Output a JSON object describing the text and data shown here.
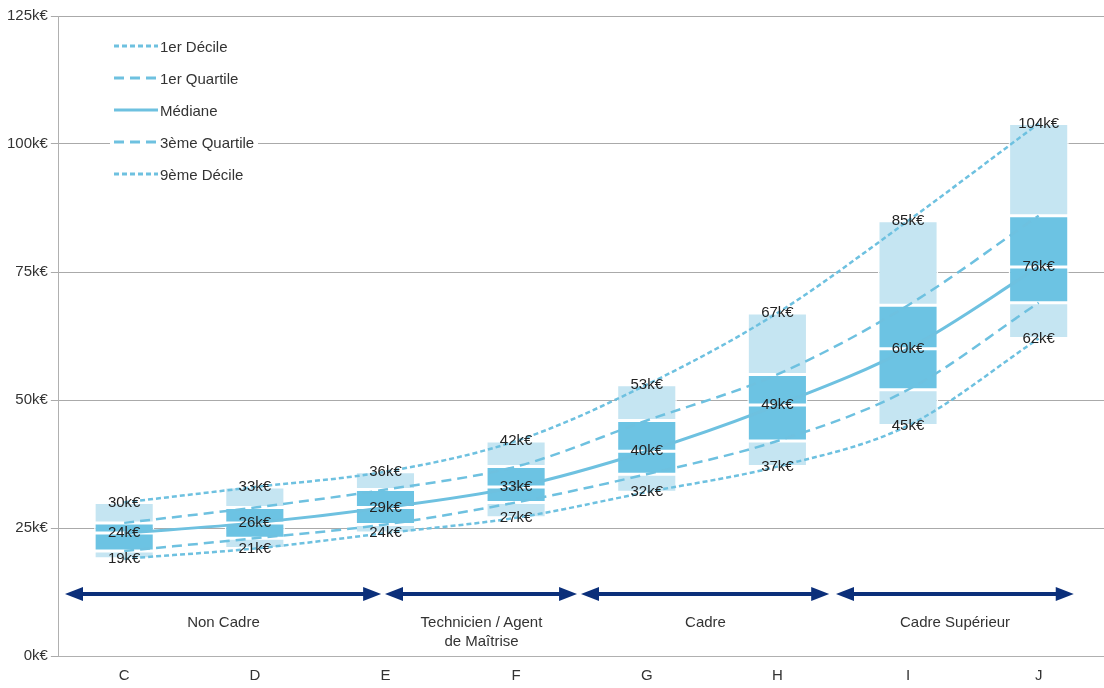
{
  "chart_data": {
    "type": "line",
    "categories": [
      "C",
      "D",
      "E",
      "F",
      "G",
      "H",
      "I",
      "J"
    ],
    "ylim": [
      0,
      125
    ],
    "yticks": [
      {
        "value": 0,
        "label": "0k€"
      },
      {
        "value": 25,
        "label": "25k€"
      },
      {
        "value": 50,
        "label": "50k€"
      },
      {
        "value": 75,
        "label": "75k€"
      },
      {
        "value": 100,
        "label": "100k€"
      },
      {
        "value": 125,
        "label": "125k€"
      }
    ],
    "grid": "y",
    "legend": "top left",
    "marker": "none",
    "annotations": [
      "Non Cadre",
      "Technicien / Agent de Maîtrise",
      "Cadre",
      "Cadre Supérieur"
    ],
    "series": [
      {
        "type": "bar",
        "color": "#c5e5f2",
        "base": [
          19,
          21,
          24,
          27,
          32,
          37,
          45,
          62
        ],
        "values": [
          1.5,
          2,
          1.7,
          3,
          3.5,
          5,
          7,
          7
        ]
      },
      {
        "type": "bar",
        "color": "#6cc3e3",
        "base": [
          20.5,
          23,
          25.7,
          30,
          35.5,
          42,
          52,
          69
        ],
        "values": [
          3.5,
          3,
          3.3,
          3,
          4.5,
          7,
          8,
          7
        ]
      },
      {
        "type": "bar",
        "color": "#6cc3e3",
        "base": [
          24,
          26,
          29,
          33,
          40,
          49,
          60,
          76
        ],
        "values": [
          2,
          3,
          3.5,
          4,
          6,
          6,
          8.5,
          10
        ]
      },
      {
        "type": "bar",
        "color": "#c5e5f2",
        "base": [
          26,
          29,
          32.5,
          37,
          46,
          55,
          68.5,
          86
        ],
        "values": [
          4,
          4,
          3.5,
          5,
          7,
          12,
          16.5,
          18
        ]
      },
      {
        "name": "1er Décile",
        "color": "#6ec1e0",
        "line_style": "dotted",
        "values": [
          19,
          21,
          24,
          27,
          32,
          37,
          45,
          62
        ],
        "value_labels": [
          "19k€",
          "21k€",
          "24k€",
          "27k€",
          "32k€",
          "37k€",
          "45k€",
          "62k€"
        ]
      },
      {
        "name": "1er Quartile",
        "color": "#6ec1e0",
        "line_style": "dashed",
        "values": [
          20.5,
          23,
          25.7,
          30,
          35.5,
          42,
          52,
          69
        ]
      },
      {
        "name": "Médiane",
        "color": "#6ec1e0",
        "line_style": "solid",
        "values": [
          24,
          26,
          29,
          33,
          40,
          49,
          60,
          76
        ],
        "value_labels": [
          "24k€",
          "26k€",
          "29k€",
          "33k€",
          "40k€",
          "49k€",
          "60k€",
          "76k€"
        ]
      },
      {
        "name": "3ème Quartile",
        "color": "#6ec1e0",
        "line_style": "dashed",
        "values": [
          26,
          29,
          32.5,
          37,
          46,
          55,
          68.5,
          86
        ]
      },
      {
        "name": "9ème Décile",
        "color": "#6ec1e0",
        "line_style": "dotted",
        "values": [
          30,
          33,
          36,
          42,
          53,
          67,
          85,
          104
        ],
        "value_labels": [
          "30k€",
          "33k€",
          "36k€",
          "42k€",
          "53k€",
          "67k€",
          "85k€",
          "104k€"
        ]
      }
    ]
  }
}
